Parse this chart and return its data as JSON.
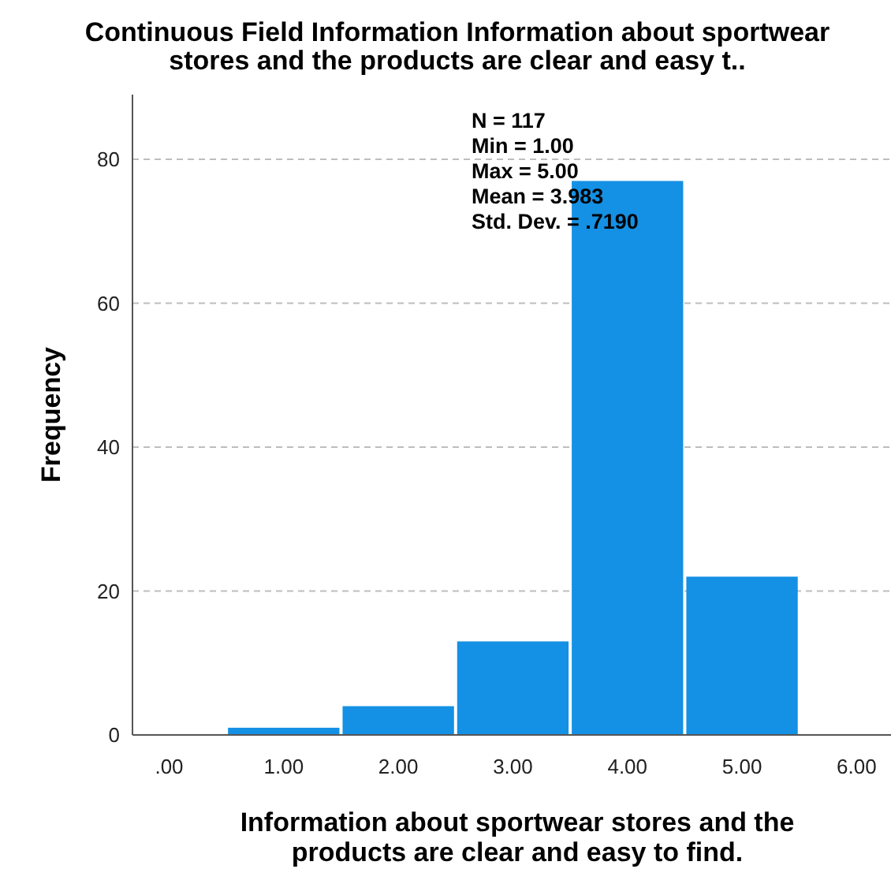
{
  "chart_data": {
    "type": "histogram",
    "title": "Continuous Field Information Information about sportwear stores and the products are clear and easy t..",
    "xlabel": "Information about sportwear stores and the products are clear and easy to find.",
    "ylabel": "Frequency",
    "bins": [
      0.5,
      1.5,
      2.5,
      3.5,
      4.5,
      5.5
    ],
    "values": [
      1,
      4,
      13,
      77,
      22
    ],
    "color": "#1490e4",
    "xlim": [
      -0.32,
      6.3
    ],
    "xticks": [
      {
        "value": 0,
        "label": ".00"
      },
      {
        "value": 1,
        "label": "1.00"
      },
      {
        "value": 2,
        "label": "2.00"
      },
      {
        "value": 3,
        "label": "3.00"
      },
      {
        "value": 4,
        "label": "4.00"
      },
      {
        "value": 5,
        "label": "5.00"
      },
      {
        "value": 6,
        "label": "6.00"
      }
    ],
    "ylim": [
      0,
      89
    ],
    "yticks": [
      0,
      20,
      40,
      60,
      80
    ],
    "grid": "y",
    "legend": false,
    "annotations": [
      "N = 117",
      "Min = 1.00",
      "Max = 5.00",
      "Mean = 3.983",
      "Std. Dev. = .7190"
    ]
  }
}
